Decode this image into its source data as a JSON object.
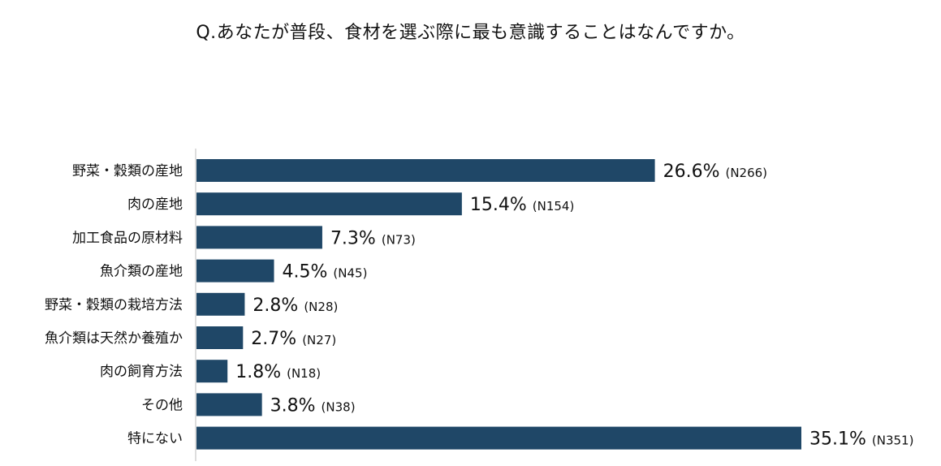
{
  "chart_data": {
    "type": "bar",
    "orientation": "horizontal",
    "title": "Q.あなたが普段、食材を選ぶ際に最も意識することはなんですか。",
    "categories": [
      "野菜・穀類の産地",
      "肉の産地",
      "加工食品の原材料",
      "魚介類の産地",
      "野菜・穀類の栽培方法",
      "魚介類は天然か養殖か",
      "肉の飼育方法",
      "その他",
      "特にない"
    ],
    "values": [
      26.6,
      15.4,
      7.3,
      4.5,
      2.8,
      2.7,
      1.8,
      3.8,
      35.1
    ],
    "value_labels": [
      "26.6%",
      "15.4%",
      "7.3%",
      "4.5%",
      "2.8%",
      "2.7%",
      "1.8%",
      "3.8%",
      "35.1%"
    ],
    "n_labels": [
      "(N266)",
      "(N154)",
      "(N73)",
      "(N45)",
      "(N28)",
      "(N27)",
      "(N18)",
      "(N38)",
      "(N351)"
    ],
    "bar_color": "#1f4767",
    "axis_color": "#bbbbbb",
    "xlim": [
      0,
      35.1
    ],
    "grid": false,
    "legend": "none"
  }
}
